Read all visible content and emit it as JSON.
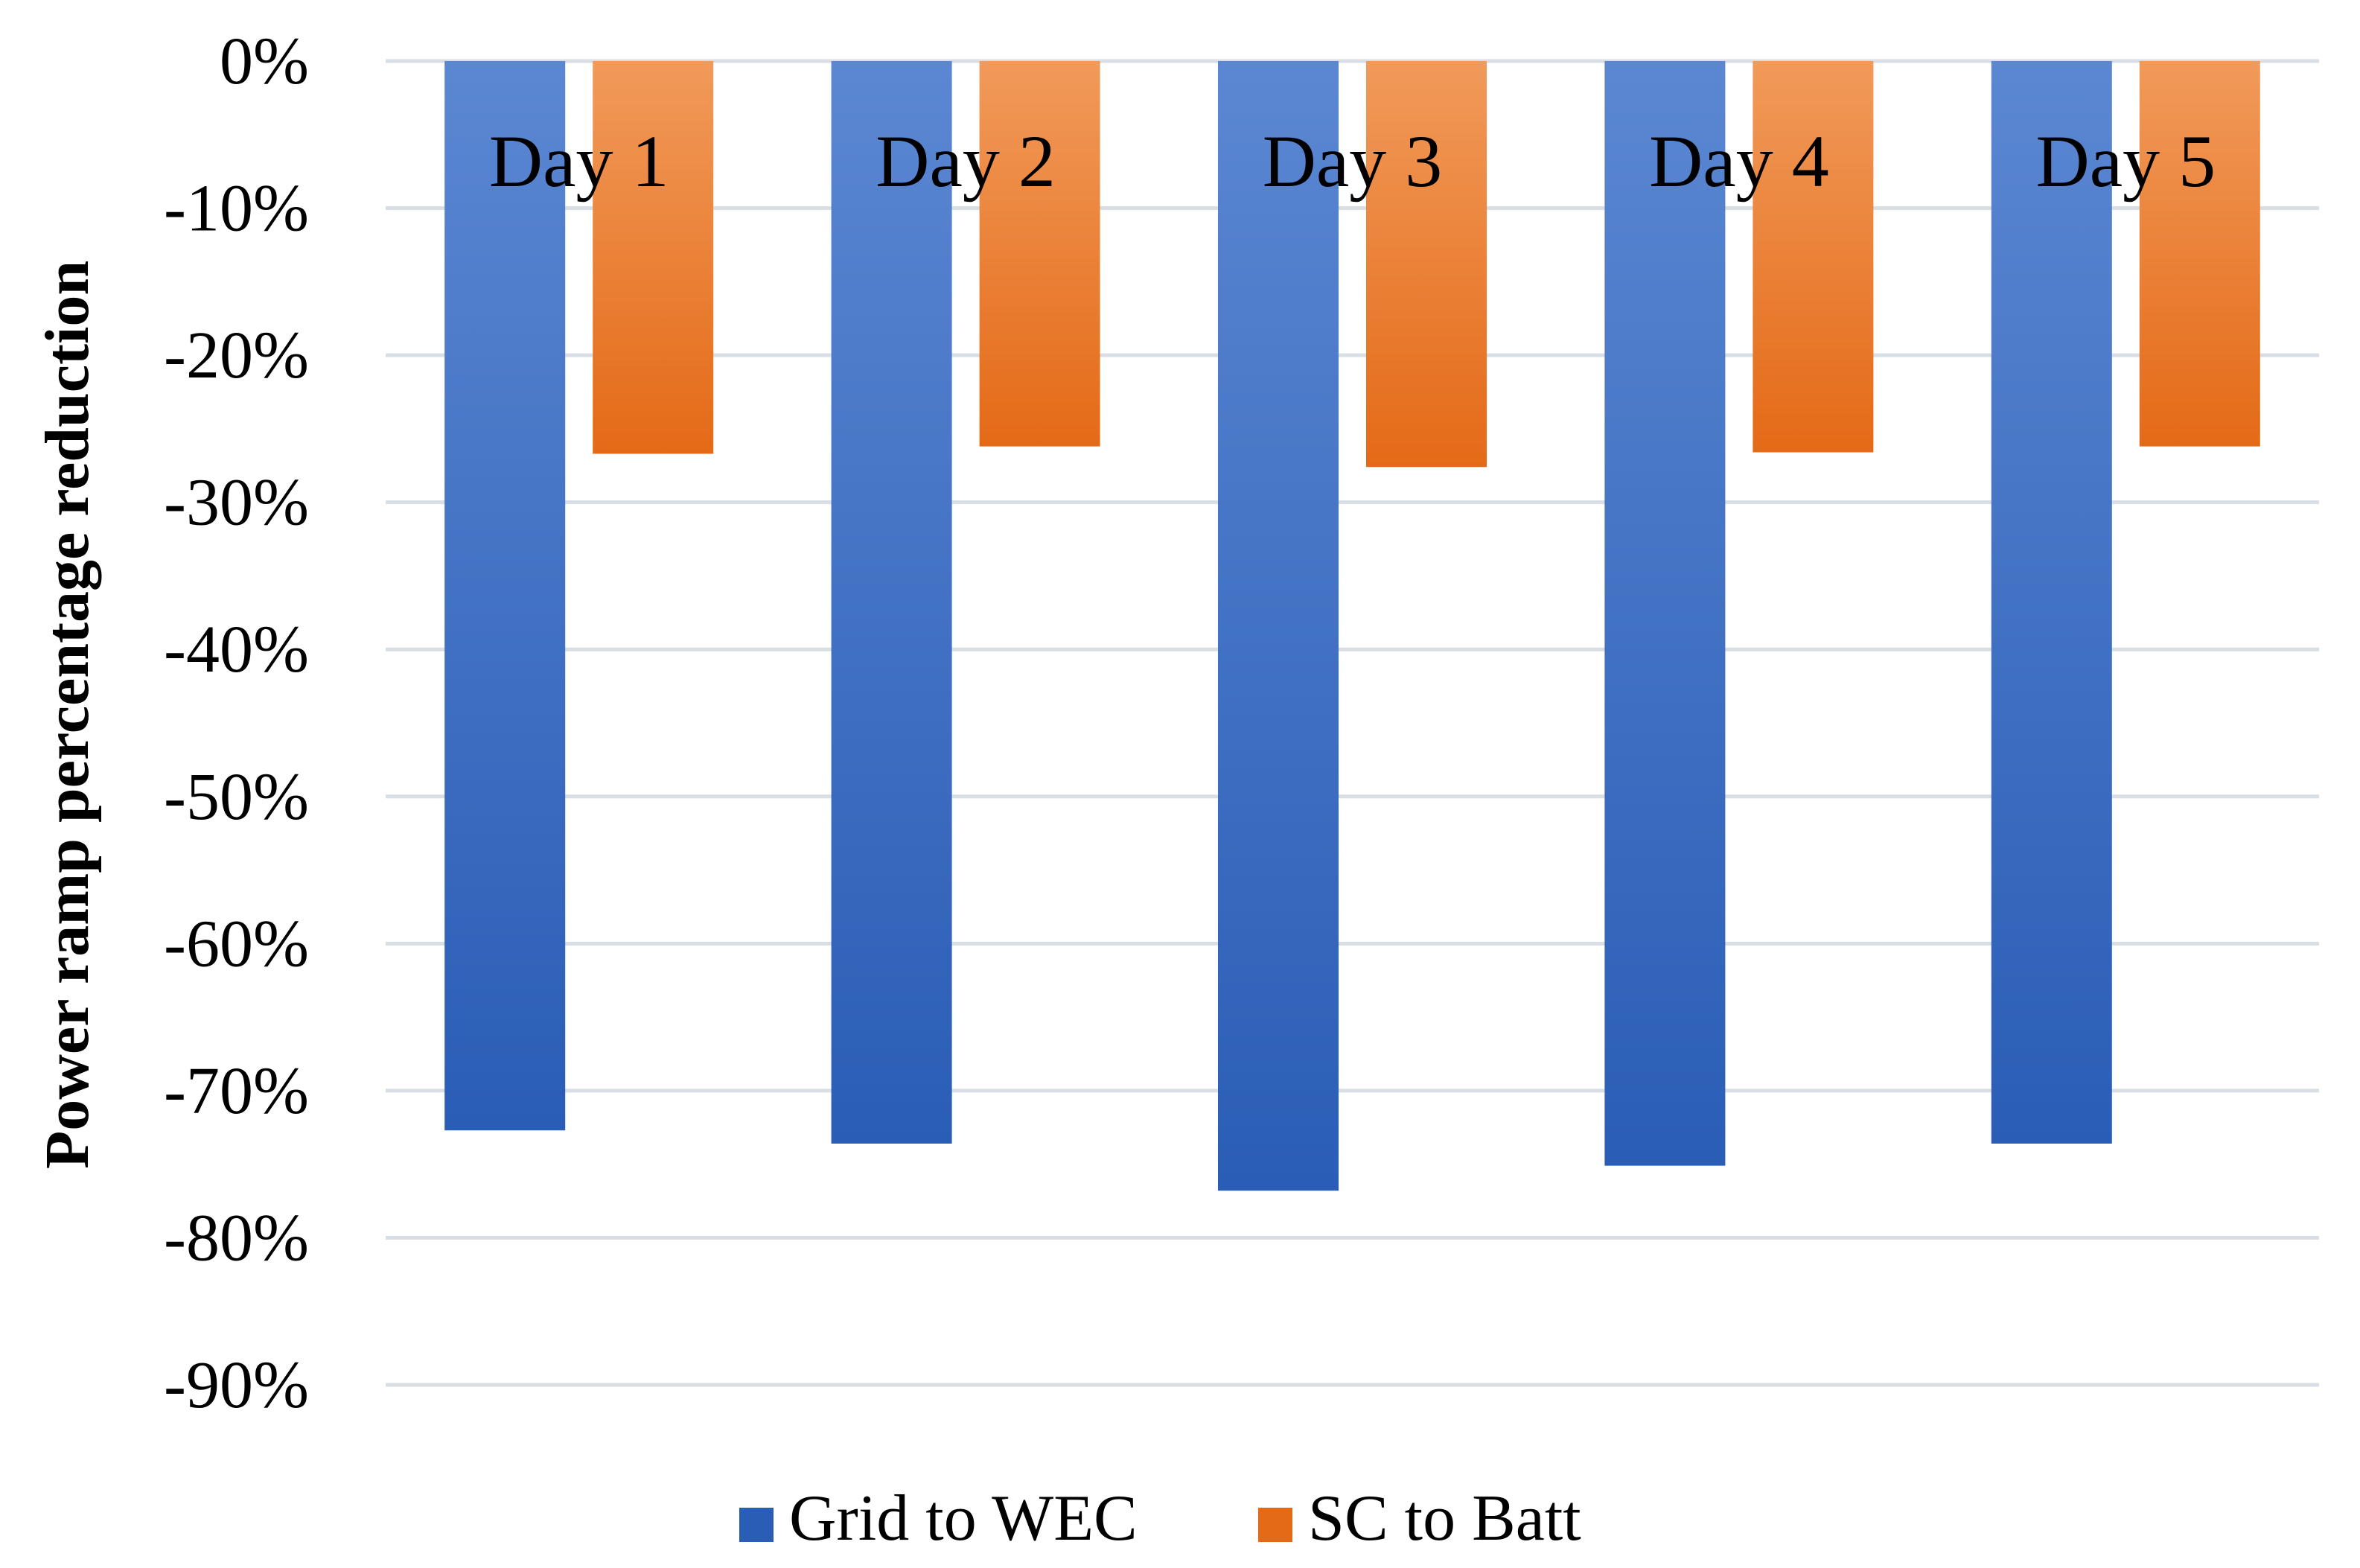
{
  "chart_data": {
    "type": "bar",
    "title": "",
    "xlabel": "",
    "ylabel": "Power ramp percentage reduction",
    "categories": [
      "Day 1",
      "Day 2",
      "Day 3",
      "Day 4",
      "Day 5"
    ],
    "series": [
      {
        "name": "Grid to WEC",
        "values": [
          -72.7,
          -73.6,
          -76.8,
          -75.1,
          -73.6
        ],
        "color_top": "#5b87d2",
        "color_bottom": "#2a5db6"
      },
      {
        "name": "SC to Batt",
        "values": [
          -26.7,
          -26.2,
          -27.6,
          -26.6,
          -26.2
        ],
        "color_top": "#f19a5a",
        "color_bottom": "#e46a17"
      }
    ],
    "ylim": [
      -90,
      0
    ],
    "yticks": [
      0,
      -10,
      -20,
      -30,
      -40,
      -50,
      -60,
      -70,
      -80,
      -90
    ],
    "ytick_labels": [
      "0%",
      "-10%",
      "-20%",
      "-30%",
      "-40%",
      "-50%",
      "-60%",
      "-70%",
      "-80%",
      "-90%"
    ],
    "grid": true,
    "legend_position": "bottom"
  }
}
